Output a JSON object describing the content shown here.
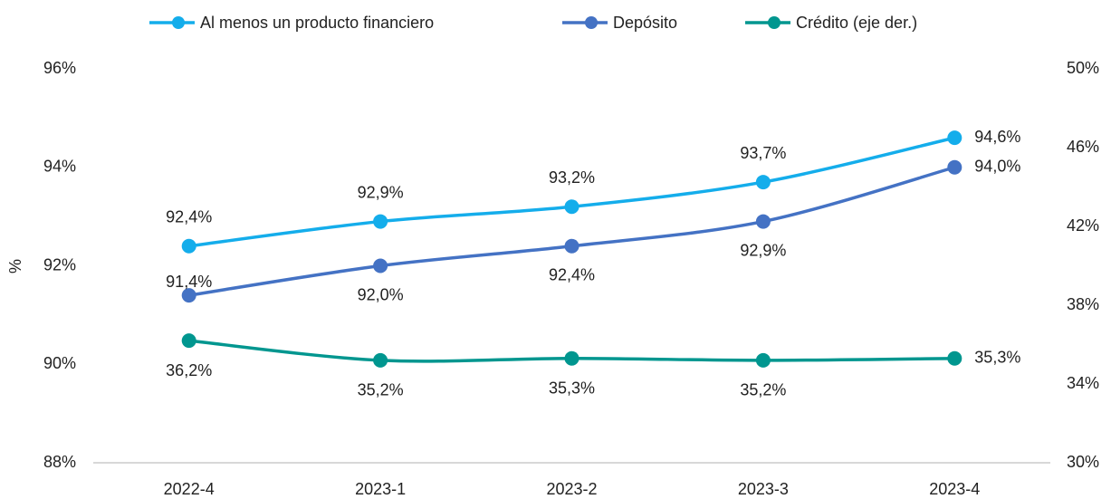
{
  "chart_data": {
    "type": "line",
    "y_label": "%",
    "categories": [
      "2022-4",
      "2023-1",
      "2023-2",
      "2023-3",
      "2023-4"
    ],
    "series": [
      {
        "name": "Al menos un producto financiero",
        "color": "#14ADEB",
        "values": [
          92.4,
          92.9,
          93.2,
          93.7,
          94.6
        ],
        "value_labels": [
          "92,4%",
          "92,9%",
          "93,2%",
          "93,7%",
          "94,6%"
        ]
      },
      {
        "name": "Depósito",
        "color": "#4472C4",
        "values": [
          91.4,
          92.0,
          92.4,
          92.9,
          94.0
        ],
        "value_labels": [
          "91,4%",
          "92,0%",
          "92,4%",
          "92,9%",
          "94,0%"
        ]
      },
      {
        "name": "Crédito (eje der.)",
        "color": "#00968F",
        "axis": "y2",
        "values": [
          36.2,
          35.2,
          35.3,
          35.2,
          35.3
        ],
        "value_labels": [
          "36,2%",
          "35,2%",
          "35,3%",
          "35,2%",
          "35,3%"
        ]
      }
    ],
    "ylim": [
      88,
      96
    ],
    "yticks": [
      {
        "value": 88,
        "label": "88%"
      },
      {
        "value": 90,
        "label": "90%"
      },
      {
        "value": 92,
        "label": "92%"
      },
      {
        "value": 94,
        "label": "94%"
      },
      {
        "value": 96,
        "label": "96%"
      }
    ],
    "y2lim": [
      30,
      50
    ],
    "y2ticks": [
      {
        "value": 30,
        "label": "30%"
      },
      {
        "value": 34,
        "label": "34%"
      },
      {
        "value": 38,
        "label": "38%"
      },
      {
        "value": 42,
        "label": "42%"
      },
      {
        "value": 46,
        "label": "46%"
      },
      {
        "value": 50,
        "label": "50%"
      }
    ],
    "legend": "top",
    "grid": false
  }
}
